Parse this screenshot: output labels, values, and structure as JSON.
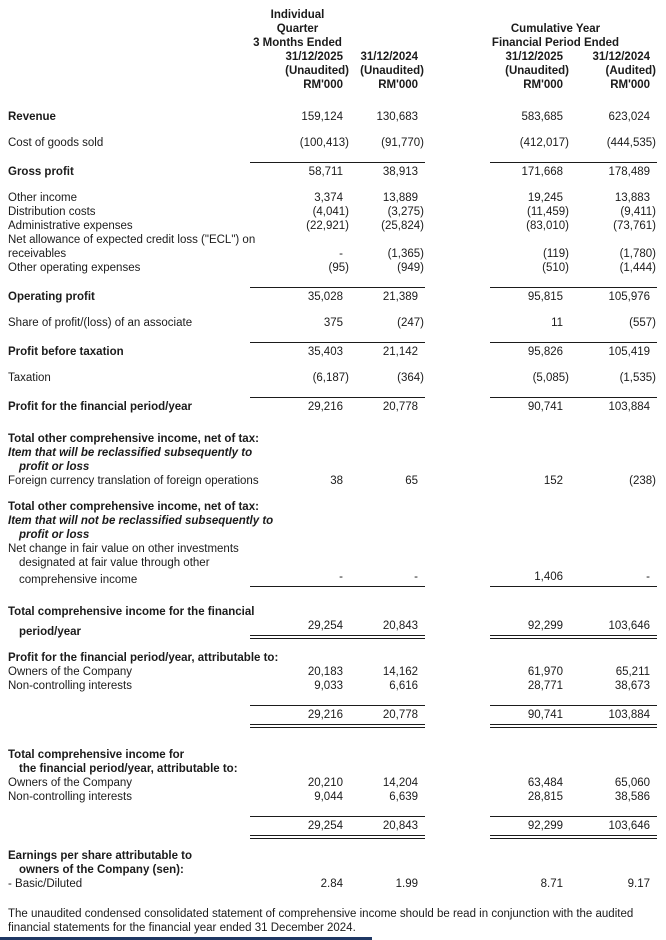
{
  "colors": {
    "background": "#ffffff",
    "text": "#1b1b1b",
    "footer_bar": "#1f3864"
  },
  "header": {
    "group1": {
      "line1": "Individual Quarter",
      "line2": "3 Months Ended"
    },
    "group2": {
      "line1": "Cumulative Year",
      "line2": "Financial Period Ended"
    },
    "columns": [
      {
        "date": "31/12/2025",
        "audit": "(Unaudited)",
        "unit": "RM'000"
      },
      {
        "date": "31/12/2024",
        "audit": "(Unaudited)",
        "unit": "RM'000"
      },
      {
        "date": "31/12/2025",
        "audit": "(Unaudited)",
        "unit": "RM'000"
      },
      {
        "date": "31/12/2024",
        "audit": "(Audited)",
        "unit": "RM'000"
      }
    ]
  },
  "rows": [
    {
      "label": "Revenue",
      "style": "bold",
      "values": [
        "159,124",
        "130,683",
        "583,685",
        "623,024"
      ],
      "gap": 12
    },
    {
      "label": "Cost of goods sold",
      "values": [
        "(100,413)",
        "(91,770)",
        "(412,017)",
        "(444,535)"
      ],
      "gap": 12
    },
    {
      "label": "Gross profit",
      "style": "bold",
      "values": [
        "58,711",
        "38,913",
        "171,668",
        "178,489"
      ],
      "line": "top",
      "gap": 12
    },
    {
      "label": "Other income",
      "values": [
        "3,374",
        "13,889",
        "19,245",
        "13,883"
      ],
      "gap": 12
    },
    {
      "label": "Distribution costs",
      "values": [
        "(4,041)",
        "(3,275)",
        "(11,459)",
        "(9,411)"
      ]
    },
    {
      "label": "Administrative expenses",
      "values": [
        "(22,921)",
        "(25,824)",
        "(83,010)",
        "(73,761)"
      ]
    },
    {
      "label": "Net allowance of expected credit loss (\"ECL\") on"
    },
    {
      "label": "receivables",
      "values": [
        "-",
        "(1,365)",
        "(119)",
        "(1,780)"
      ]
    },
    {
      "label": "Other operating expenses",
      "values": [
        "(95)",
        "(949)",
        "(510)",
        "(1,444)"
      ]
    },
    {
      "label": "Operating profit",
      "style": "bold",
      "values": [
        "35,028",
        "21,389",
        "95,815",
        "105,976"
      ],
      "line": "top",
      "gap": 12
    },
    {
      "label": "Share of profit/(loss) of an associate",
      "values": [
        "375",
        "(247)",
        "11",
        "(557)"
      ],
      "gap": 12
    },
    {
      "label": "Profit before taxation",
      "style": "bold",
      "values": [
        "35,403",
        "21,142",
        "95,826",
        "105,419"
      ],
      "line": "top",
      "gap": 12
    },
    {
      "label": "Taxation",
      "values": [
        "(6,187)",
        "(364)",
        "(5,085)",
        "(1,535)"
      ],
      "gap": 12
    },
    {
      "label": "Profit for the financial period/year",
      "style": "bold",
      "values": [
        "29,216",
        "20,778",
        "90,741",
        "103,884"
      ],
      "line": "top",
      "gap": 12
    },
    {
      "label": "Total other comprehensive income, net of tax:",
      "style": "bold",
      "gap": 18
    },
    {
      "label": "Item that will be reclassified subsequently to",
      "style": "bolditalic"
    },
    {
      "label": "profit or loss",
      "style": "bolditalic",
      "indent": 1
    },
    {
      "label": "Foreign currency translation of foreign operations",
      "values": [
        "38",
        "65",
        "152",
        "(238)"
      ]
    },
    {
      "label": "Total other comprehensive income, net of tax:",
      "style": "bold",
      "gap": 12
    },
    {
      "label": "Item that will not be reclassified subsequently to",
      "style": "bolditalic"
    },
    {
      "label": "profit or loss",
      "style": "bolditalic",
      "indent": 1
    },
    {
      "label": "Net change in fair value on other investments"
    },
    {
      "label": "designated at fair value through other",
      "indent": 1
    },
    {
      "label": "comprehensive income",
      "indent": 1,
      "values": [
        "-",
        "-",
        "1,406",
        "-"
      ],
      "line": "bottom"
    },
    {
      "label": "Total comprehensive income for the financial",
      "style": "bold",
      "gap": 18
    },
    {
      "label": "period/year",
      "style": "bold",
      "indent": 1,
      "values": [
        "29,254",
        "20,843",
        "92,299",
        "103,646"
      ],
      "line": "dbl"
    },
    {
      "label": "Profit for the financial period/year, attributable to:",
      "style": "bold",
      "gap": 12
    },
    {
      "label": "Owners of the Company",
      "values": [
        "20,183",
        "14,162",
        "61,970",
        "65,211"
      ]
    },
    {
      "label": "Non-controlling interests",
      "values": [
        "9,033",
        "6,616",
        "28,771",
        "38,673"
      ]
    },
    {
      "label": "",
      "values": [
        "29,216",
        "20,778",
        "90,741",
        "103,884"
      ],
      "line": "topdbl",
      "gap": 12
    },
    {
      "label": "Total comprehensive income for",
      "style": "bold",
      "gap": 20
    },
    {
      "label": "the financial period/year, attributable to:",
      "style": "bold",
      "indent": 1
    },
    {
      "label": "Owners of the Company",
      "values": [
        "20,210",
        "14,204",
        "63,484",
        "65,060"
      ]
    },
    {
      "label": "Non-controlling interests",
      "values": [
        "9,044",
        "6,639",
        "28,815",
        "38,586"
      ]
    },
    {
      "label": "",
      "values": [
        "29,254",
        "20,843",
        "92,299",
        "103,646"
      ],
      "line": "topdbl",
      "gap": 12
    },
    {
      "label": "Earnings per share attributable to",
      "style": "bold",
      "gap": 10
    },
    {
      "label": "owners of the Company (sen):",
      "style": "bold",
      "indent": 1
    },
    {
      "label": "- Basic/Diluted",
      "values": [
        "2.84",
        "1.99",
        "8.71",
        "9.17"
      ]
    }
  ],
  "footer": {
    "note": "The unaudited condensed consolidated statement of comprehensive income should be read in conjunction with the audited financial statements for the financial year ended 31 December 2024."
  }
}
